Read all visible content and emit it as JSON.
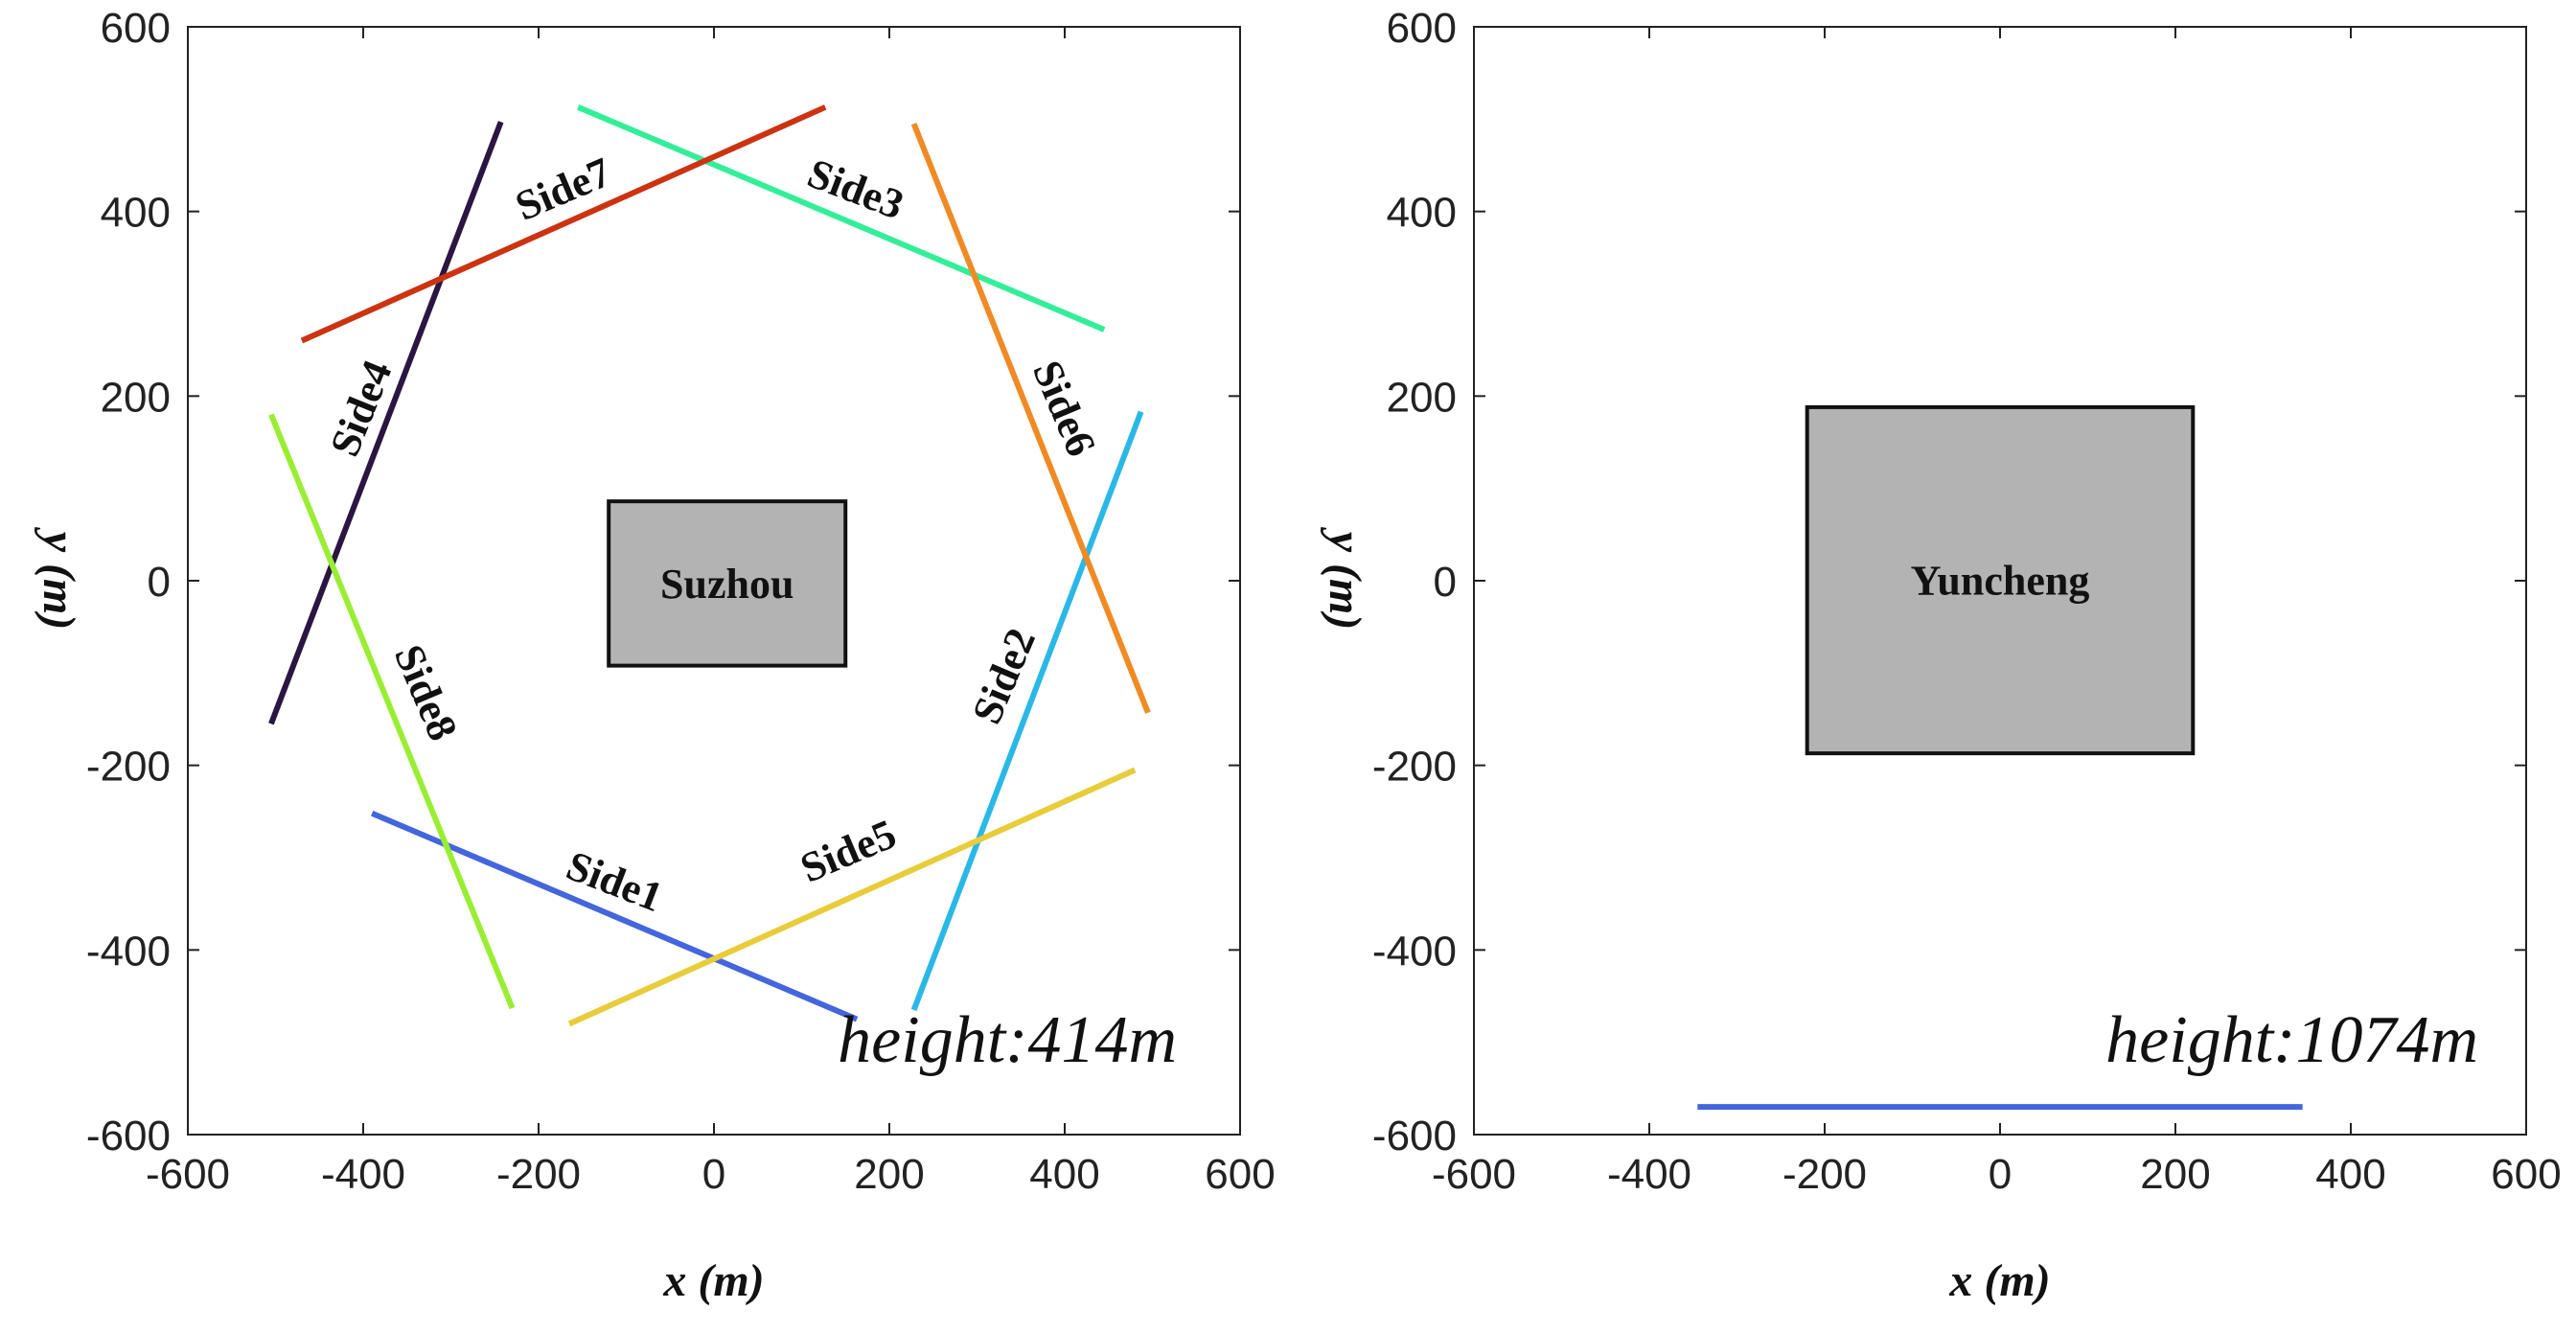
{
  "chart_data": [
    {
      "type": "line",
      "subtype": "flight-lines-map",
      "xlabel": "x (m)",
      "ylabel": "y (m)",
      "xlim": [
        -600,
        600
      ],
      "ylim": [
        -600,
        600
      ],
      "xticks": [
        -600,
        -400,
        -200,
        0,
        200,
        400,
        600
      ],
      "yticks": [
        -600,
        -400,
        -200,
        0,
        200,
        400,
        600
      ],
      "grid": false,
      "annotation": "height:414m",
      "target": {
        "label": "Suzhou",
        "x": [
          -120,
          150
        ],
        "y": [
          -92,
          86
        ],
        "color": "#b3b3b3"
      },
      "series": [
        {
          "name": "Side1",
          "color": "#4466dd",
          "x": [
            -390,
            163
          ],
          "y": [
            -252,
            -475
          ],
          "label_at": [
            -115,
            -330
          ],
          "label_rot": 21
        },
        {
          "name": "Side2",
          "color": "#2ab8e6",
          "x": [
            228,
            487
          ],
          "y": [
            -465,
            183
          ],
          "label_at": [
            335,
            -105
          ],
          "label_rot": -67
        },
        {
          "name": "Side3",
          "color": "#33ee99",
          "x": [
            -155,
            445
          ],
          "y": [
            513,
            272
          ],
          "label_at": [
            160,
            420
          ],
          "label_rot": 21
        },
        {
          "name": "Side4",
          "color": "#2a1640",
          "x": [
            -505,
            -243
          ],
          "y": [
            -155,
            497
          ],
          "label_at": [
            -398,
            185
          ],
          "label_rot": -68
        },
        {
          "name": "Side5",
          "color": "#e8cc3a",
          "x": [
            -165,
            480
          ],
          "y": [
            -480,
            -205
          ],
          "label_at": [
            155,
            -297
          ],
          "label_rot": -23
        },
        {
          "name": "Side6",
          "color": "#f08a24",
          "x": [
            228,
            495
          ],
          "y": [
            495,
            -143
          ],
          "label_at": [
            395,
            185
          ],
          "label_rot": 67
        },
        {
          "name": "Side7",
          "color": "#cc3311",
          "x": [
            -470,
            127
          ],
          "y": [
            260,
            513
          ],
          "label_at": [
            -170,
            420
          ],
          "label_rot": -23
        },
        {
          "name": "Side8",
          "color": "#99ee33",
          "x": [
            -505,
            -230
          ],
          "y": [
            180,
            -463
          ],
          "label_at": [
            -333,
            -123
          ],
          "label_rot": 67
        }
      ]
    },
    {
      "type": "line",
      "subtype": "flight-lines-map",
      "xlabel": "x (m)",
      "ylabel": "y (m)",
      "xlim": [
        -600,
        600
      ],
      "ylim": [
        -600,
        600
      ],
      "xticks": [
        -600,
        -400,
        -200,
        0,
        200,
        400,
        600
      ],
      "yticks": [
        -600,
        -400,
        -200,
        0,
        200,
        400,
        600
      ],
      "grid": false,
      "annotation": "height:1074m",
      "target": {
        "label": "Yuncheng",
        "x": [
          -220,
          220
        ],
        "y": [
          -187,
          188
        ],
        "color": "#b3b3b3"
      },
      "series": [
        {
          "name": "",
          "color": "#4466dd",
          "x": [
            -345,
            345
          ],
          "y": [
            -570,
            -570
          ]
        }
      ]
    }
  ]
}
